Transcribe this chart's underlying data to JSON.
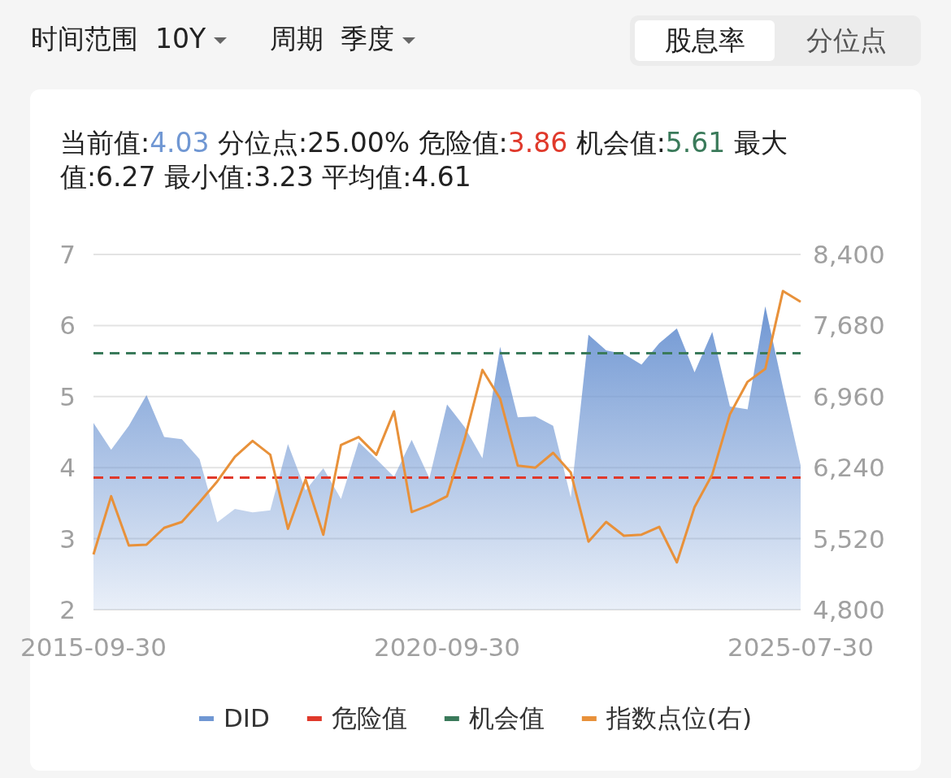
{
  "chart_data": {
    "type": "area",
    "annotations": [
      "时间范围",
      "10Y",
      "周期",
      "季度",
      "股息率",
      "分位点",
      "当前值:4.03",
      "分位点:25.00%",
      "危险值:3.86",
      "机会值:5.61",
      "最大值:6.27",
      "最小值:3.23",
      "平均值:4.61"
    ],
    "categories": [
      "2015-09-30",
      null,
      null,
      null,
      null,
      null,
      null,
      null,
      null,
      null,
      null,
      null,
      null,
      null,
      null,
      null,
      null,
      null,
      null,
      null,
      "2020-09-30",
      null,
      null,
      null,
      null,
      null,
      null,
      null,
      null,
      null,
      null,
      null,
      null,
      null,
      null,
      null,
      null,
      null,
      null,
      null,
      "2025-07-30"
    ],
    "series": [
      {
        "name": "DID",
        "color": "#7097d3",
        "values": [
          4.63,
          4.25,
          4.59,
          5.02,
          4.43,
          4.4,
          4.12,
          3.23,
          3.42,
          3.37,
          3.4,
          4.33,
          3.68,
          3.99,
          3.56,
          4.36,
          4.12,
          3.87,
          4.39,
          3.85,
          4.89,
          4.57,
          4.13,
          5.7,
          4.71,
          4.72,
          4.59,
          3.58,
          5.87,
          5.65,
          5.6,
          5.45,
          5.75,
          5.96,
          5.34,
          5.91,
          4.86,
          4.82,
          6.27,
          5.13,
          4.03
        ]
      },
      {
        "name": "指数点位(右)",
        "type": "line",
        "axis": "y2",
        "color": "#e8913a",
        "values": [
          5360,
          5950,
          5450,
          5460,
          5630,
          5690,
          5890,
          6100,
          6350,
          6510,
          6370,
          5620,
          6120,
          5560,
          6470,
          6550,
          6370,
          6810,
          5790,
          5860,
          5950,
          6530,
          7230,
          6940,
          6260,
          6240,
          6390,
          6190,
          5490,
          5690,
          5550,
          5560,
          5640,
          5280,
          5840,
          6170,
          6780,
          7110,
          7240,
          8030,
          7920
        ]
      }
    ],
    "ref_lines": [
      {
        "axis": "y",
        "value": 3.86,
        "label": "危险值",
        "color": "#e0392b",
        "line_style": "dashed"
      },
      {
        "axis": "y",
        "value": 5.61,
        "label": "机会值",
        "color": "#3a7a5a",
        "line_style": "dashed"
      }
    ],
    "ylim": [
      2,
      7
    ],
    "yticks": [
      2,
      3,
      4,
      5,
      6,
      7
    ],
    "y2lim": [
      4800,
      8400
    ],
    "y2ticks": [
      {
        "value": 4800,
        "label": "4,800"
      },
      {
        "value": 5520,
        "label": "5,520"
      },
      {
        "value": 6240,
        "label": "6,240"
      },
      {
        "value": 6960,
        "label": "6,960"
      },
      {
        "value": 7680,
        "label": "7,680"
      },
      {
        "value": 8400,
        "label": "8,400"
      }
    ],
    "grid": "y",
    "legend": "bottom"
  }
}
